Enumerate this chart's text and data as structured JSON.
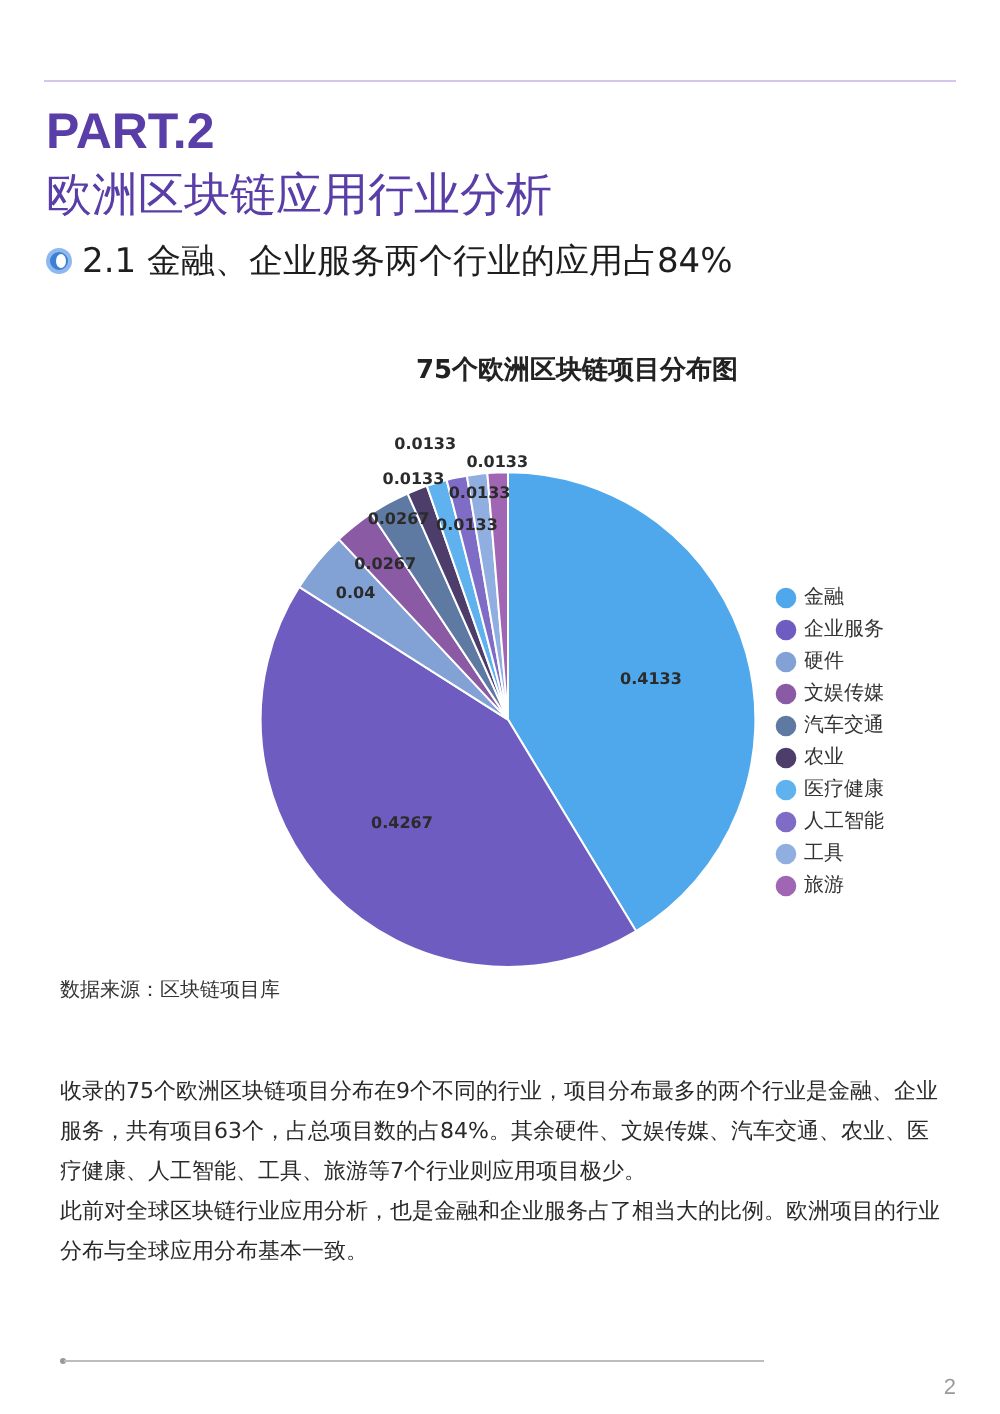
{
  "chart_data": {
    "type": "pie",
    "title": "75个欧洲区块链项目分布图",
    "categories": [
      "金融",
      "企业服务",
      "硬件",
      "文娱传媒",
      "汽车交通",
      "农业",
      "医疗健康",
      "人工智能",
      "工具",
      "旅游"
    ],
    "values": [
      0.4133,
      0.4267,
      0.04,
      0.0267,
      0.0267,
      0.0133,
      0.0133,
      0.0133,
      0.0133,
      0.0133
    ],
    "colors": [
      "#4fa8ec",
      "#6f5cc0",
      "#82a2d6",
      "#8b5aa5",
      "#5e7aa3",
      "#4c3d6b",
      "#5fb2ee",
      "#7f6cc6",
      "#90aee0",
      "#a065b3"
    ],
    "data_labels": true,
    "legend": "right",
    "annotations": [
      "PART.2",
      "欧洲区块链应用行业分析",
      "2.1 金融、企业服务两个行业的应用占84%",
      "数据来源：区块链项目库",
      "收录的75个欧洲区块链项目分布在9个不同的行业，项目分布最多的两个行业是金融、企业服务，共有项目63个，占总项目数的占84%。其余硬件、文娱传媒、汽车交通、农业、医疗健康、人工智能、工具、旅游等7个行业则应用项目极少。",
      "此前对全球区块链行业应用分析，也是金融和企业服务占了相当大的比例。欧洲项目的行业分布与全球应用分布基本一致。",
      "2"
    ]
  }
}
